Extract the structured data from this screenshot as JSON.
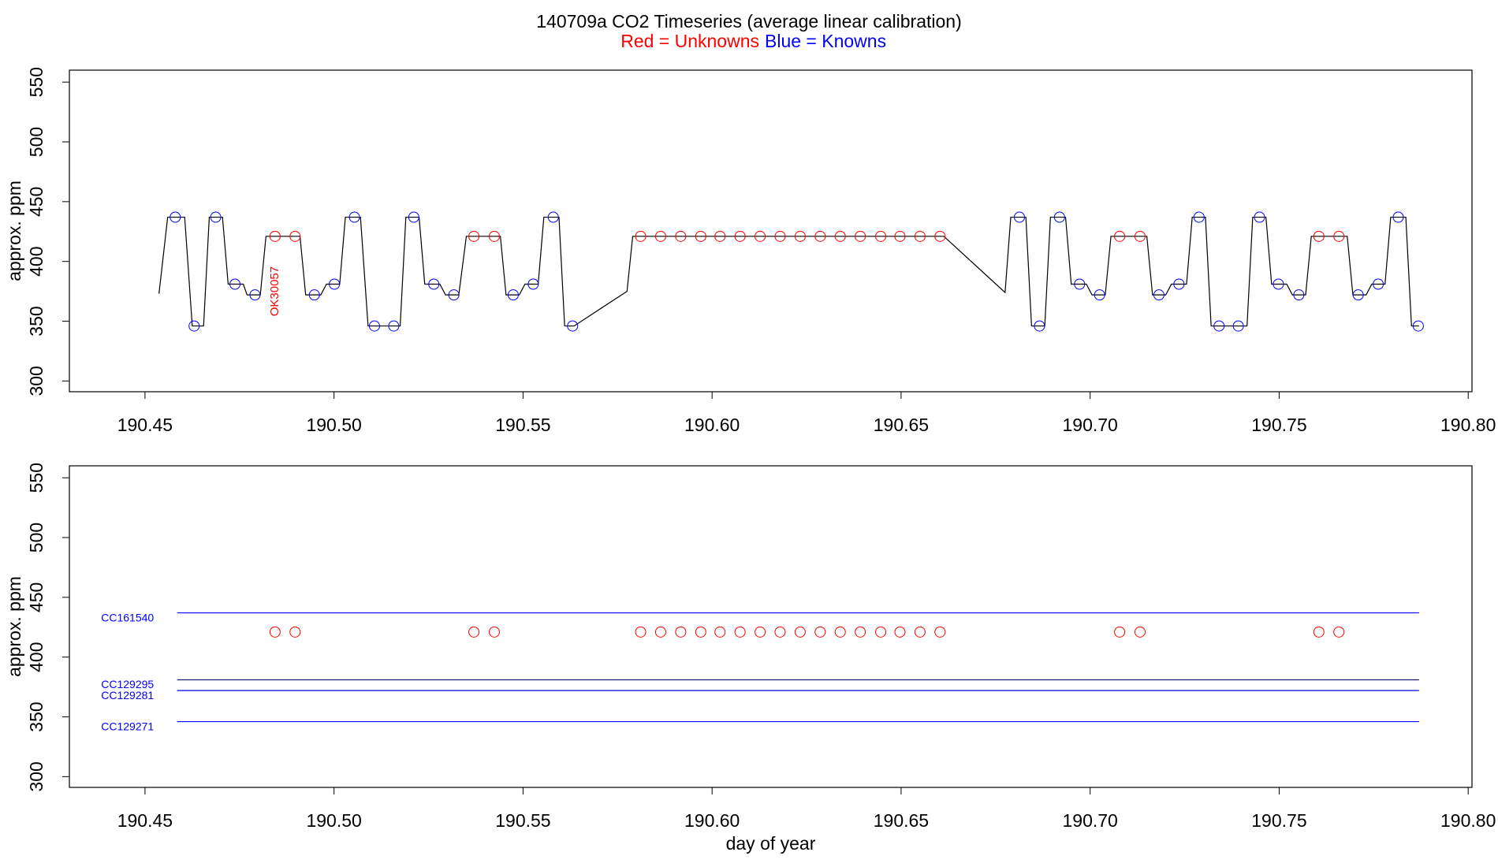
{
  "chart_data": [
    {
      "type": "timeseries",
      "title": "140709a   CO2 Timeseries (average linear calibration)",
      "ylabel": "approx. ppm",
      "xlim": [
        190.43,
        190.801
      ],
      "ylim": [
        291,
        560
      ],
      "xticks": [
        {
          "value": 190.45,
          "label": "190.45"
        },
        {
          "value": 190.5,
          "label": "190.50"
        },
        {
          "value": 190.55,
          "label": "190.55"
        },
        {
          "value": 190.6,
          "label": "190.60"
        },
        {
          "value": 190.65,
          "label": "190.65"
        },
        {
          "value": 190.7,
          "label": "190.70"
        },
        {
          "value": 190.75,
          "label": "190.75"
        },
        {
          "value": 190.8,
          "label": "190.80"
        }
      ],
      "yticks": [
        300,
        350,
        400,
        450,
        500,
        550
      ],
      "annotation": {
        "text": "OK30057",
        "x": 190.4844,
        "y": 375,
        "color": "red"
      },
      "series": [
        {
          "style": "line",
          "color": "black",
          "x": [
            190.4537,
            190.456,
            190.4605,
            190.4625,
            190.4655,
            190.467,
            190.4705,
            190.472,
            190.476,
            190.477,
            190.4805,
            190.482,
            190.491,
            190.4925,
            190.4965,
            190.498,
            190.5015,
            190.503,
            190.507,
            190.509,
            190.5175,
            190.519,
            190.5225,
            190.524,
            190.528,
            190.5295,
            190.533,
            190.535,
            190.544,
            190.5455,
            190.549,
            190.5505,
            190.554,
            190.5555,
            190.5595,
            190.561,
            190.5635,
            190.5775,
            190.579,
            190.6613,
            190.6775,
            190.679,
            190.683,
            190.6845,
            190.688,
            190.6895,
            190.6935,
            190.695,
            190.699,
            190.7005,
            190.704,
            190.7055,
            190.715,
            190.7165,
            190.72,
            190.7215,
            190.7255,
            190.727,
            190.7305,
            190.732,
            190.7415,
            190.743,
            190.7465,
            190.748,
            190.752,
            190.7535,
            190.757,
            190.7585,
            190.768,
            190.7695,
            190.773,
            190.7745,
            190.778,
            190.7795,
            190.7835,
            190.785,
            190.787
          ],
          "values": [
            373,
            437,
            437,
            346,
            346,
            437,
            437,
            381,
            381,
            372,
            372,
            421,
            421,
            372,
            372,
            381,
            381,
            437,
            437,
            346,
            346,
            437,
            437,
            381,
            381,
            372,
            372,
            421,
            421,
            372,
            372,
            381,
            381,
            437,
            437,
            346,
            346,
            375,
            421,
            421,
            374,
            437,
            437,
            346,
            346,
            437,
            437,
            381,
            381,
            372,
            372,
            421,
            421,
            372,
            372,
            381,
            381,
            437,
            437,
            346,
            346,
            437,
            437,
            381,
            381,
            372,
            372,
            421,
            421,
            372,
            372,
            381,
            381,
            437,
            437,
            346,
            346
          ]
        },
        {
          "style": "markers",
          "name": "Red = Unknowns",
          "color": "red",
          "x": [
            190.4844,
            190.4897,
            190.537,
            190.5424,
            190.5811,
            190.5864,
            190.5917,
            190.597,
            190.6021,
            190.6074,
            190.6127,
            190.618,
            190.6233,
            190.6286,
            190.6339,
            190.6392,
            190.6446,
            190.6497,
            190.655,
            190.6603,
            190.7078,
            190.7132,
            190.7605,
            190.7658
          ],
          "values": [
            421,
            421,
            421,
            421,
            421,
            421,
            421,
            421,
            421,
            421,
            421,
            421,
            421,
            421,
            421,
            421,
            421,
            421,
            421,
            421,
            421,
            421,
            421,
            421
          ]
        },
        {
          "style": "markers",
          "name": "Blue = Knowns",
          "color": "blue",
          "x": [
            190.458,
            190.463,
            190.4687,
            190.4738,
            190.4791,
            190.4948,
            190.5001,
            190.5054,
            190.5107,
            190.5158,
            190.5211,
            190.5264,
            190.5317,
            190.5474,
            190.5527,
            190.558,
            190.5631,
            190.6813,
            190.6866,
            190.6919,
            190.6972,
            190.7025,
            190.7182,
            190.7235,
            190.7288,
            190.7341,
            190.7392,
            190.7448,
            190.7498,
            190.7552,
            190.7709,
            190.7762,
            190.7815,
            190.7868
          ],
          "values": [
            437,
            346,
            437,
            381,
            372,
            372,
            381,
            437,
            346,
            346,
            437,
            381,
            372,
            372,
            381,
            437,
            346,
            437,
            346,
            437,
            381,
            372,
            372,
            381,
            437,
            346,
            346,
            437,
            381,
            372,
            372,
            381,
            437,
            346
          ]
        }
      ]
    },
    {
      "type": "reference",
      "ylabel": "approx. ppm",
      "xlabel": "day of year",
      "xlim": [
        190.43,
        190.801
      ],
      "ylim": [
        291,
        560
      ],
      "xticks": [
        {
          "value": 190.45,
          "label": "190.45"
        },
        {
          "value": 190.5,
          "label": "190.50"
        },
        {
          "value": 190.55,
          "label": "190.55"
        },
        {
          "value": 190.6,
          "label": "190.60"
        },
        {
          "value": 190.65,
          "label": "190.65"
        },
        {
          "value": 190.7,
          "label": "190.70"
        },
        {
          "value": 190.75,
          "label": "190.75"
        },
        {
          "value": 190.8,
          "label": "190.80"
        }
      ],
      "yticks": [
        300,
        350,
        400,
        450,
        500,
        550
      ],
      "label_x": 190.4384,
      "series": [
        {
          "style": "line",
          "name": "CC161540",
          "color": "blue",
          "x": [
            190.4585,
            190.787
          ],
          "values": [
            437,
            437
          ]
        },
        {
          "style": "line",
          "name": "CC129295",
          "color": "#1a1a6e",
          "x": [
            190.4585,
            190.787
          ],
          "values": [
            381,
            381
          ]
        },
        {
          "style": "line",
          "name": "CC129281",
          "color": "blue",
          "x": [
            190.4585,
            190.787
          ],
          "values": [
            372,
            372
          ]
        },
        {
          "style": "line",
          "name": "CC129271",
          "color": "blue",
          "x": [
            190.4585,
            190.787
          ],
          "values": [
            346,
            346
          ]
        },
        {
          "style": "markers",
          "color": "red",
          "x": [
            190.4844,
            190.4897,
            190.537,
            190.5424,
            190.5811,
            190.5864,
            190.5917,
            190.597,
            190.6021,
            190.6074,
            190.6127,
            190.618,
            190.6233,
            190.6286,
            190.6339,
            190.6392,
            190.6446,
            190.6497,
            190.655,
            190.6603,
            190.7078,
            190.7132,
            190.7605,
            190.7658
          ],
          "values": [
            421,
            421,
            421,
            421,
            421,
            421,
            421,
            421,
            421,
            421,
            421,
            421,
            421,
            421,
            421,
            421,
            421,
            421,
            421,
            421,
            421,
            421,
            421,
            421
          ]
        }
      ]
    }
  ]
}
